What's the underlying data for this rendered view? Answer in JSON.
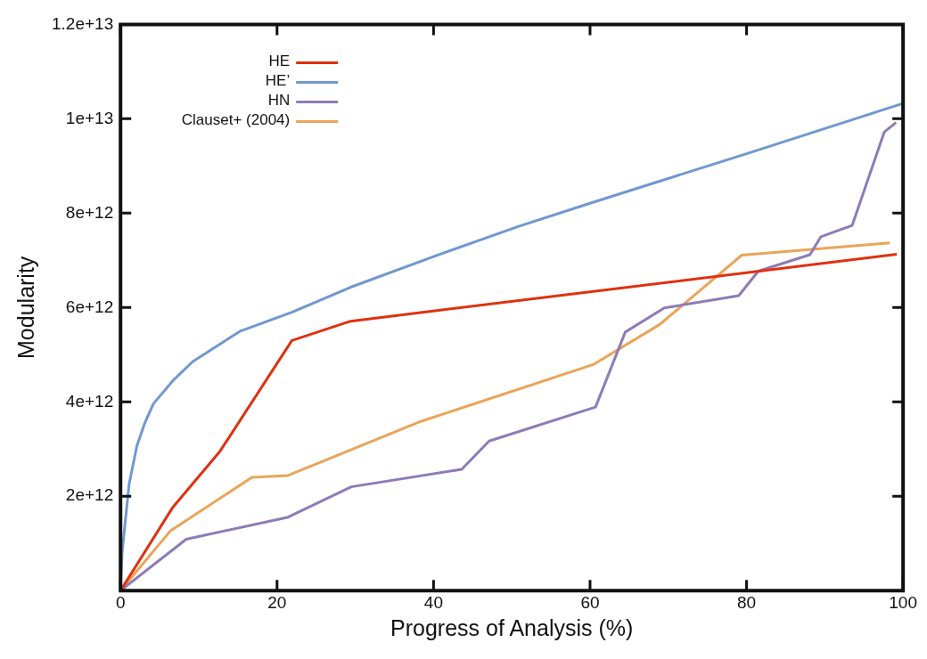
{
  "chart_data": {
    "type": "line",
    "xlabel": "Progress of Analysis (%)",
    "ylabel": "Modularity",
    "xlim": [
      0,
      100
    ],
    "ylim": [
      0,
      12000000000000.0
    ],
    "xticks": [
      0,
      20,
      40,
      60,
      80,
      100
    ],
    "yticks": [
      {
        "value": 2000000000000.0,
        "label": "2e+12"
      },
      {
        "value": 4000000000000.0,
        "label": "4e+12"
      },
      {
        "value": 6000000000000.0,
        "label": "6e+12"
      },
      {
        "value": 8000000000000.0,
        "label": "8e+12"
      },
      {
        "value": 10000000000000.0,
        "label": "1e+13"
      },
      {
        "value": 12000000000000.0,
        "label": "1.2e+13"
      }
    ],
    "grid": false,
    "legend": "top left",
    "marker": "none",
    "line_style": "solid",
    "series": [
      {
        "name": "HE",
        "color": "#e0300f",
        "x": [
          0,
          6.7,
          12.7,
          21.9,
          29.4,
          99.2
        ],
        "values": [
          0,
          1770000000000.0,
          2950000000000.0,
          5300000000000.0,
          5710000000000.0,
          7130000000000.0
        ]
      },
      {
        "name": "HE’",
        "color": "#6f98d0",
        "x": [
          0,
          0.2,
          0.6,
          1.1,
          2.1,
          3.1,
          4.2,
          6.7,
          9.2,
          11.8,
          15.3,
          21.9,
          29.4,
          40,
          50.9,
          60,
          80,
          99.9
        ],
        "values": [
          0,
          800000000000.0,
          1450000000000.0,
          2260000000000.0,
          3070000000000.0,
          3550000000000.0,
          3960000000000.0,
          4450000000000.0,
          4850000000000.0,
          5130000000000.0,
          5500000000000.0,
          5900000000000.0,
          6430000000000.0,
          7080000000000.0,
          7720000000000.0,
          8210000000000.0,
          9260000000000.0,
          10320000000000.0
        ]
      },
      {
        "name": "HN",
        "color": "#8e7bb8",
        "x": [
          0,
          8.4,
          21.3,
          29.5,
          43.6,
          47.1,
          60.7,
          64.5,
          69.5,
          79,
          81.5,
          88.1,
          89.5,
          93.5,
          97.6,
          99.1
        ],
        "values": [
          0,
          1090000000000.0,
          1550000000000.0,
          2200000000000.0,
          2570000000000.0,
          3170000000000.0,
          3890000000000.0,
          5480000000000.0,
          5990000000000.0,
          6250000000000.0,
          6770000000000.0,
          7120000000000.0,
          7500000000000.0,
          7740000000000.0,
          9720000000000.0,
          9920000000000.0
        ]
      },
      {
        "name": "Clauset+ (2004)",
        "color": "#eba458",
        "x": [
          0,
          6.4,
          16.8,
          21.4,
          38.1,
          60.4,
          68.9,
          79.4,
          98.3
        ],
        "values": [
          0,
          1270000000000.0,
          2400000000000.0,
          2440000000000.0,
          3570000000000.0,
          4790000000000.0,
          5640000000000.0,
          7110000000000.0,
          7370000000000.0
        ]
      }
    ]
  }
}
